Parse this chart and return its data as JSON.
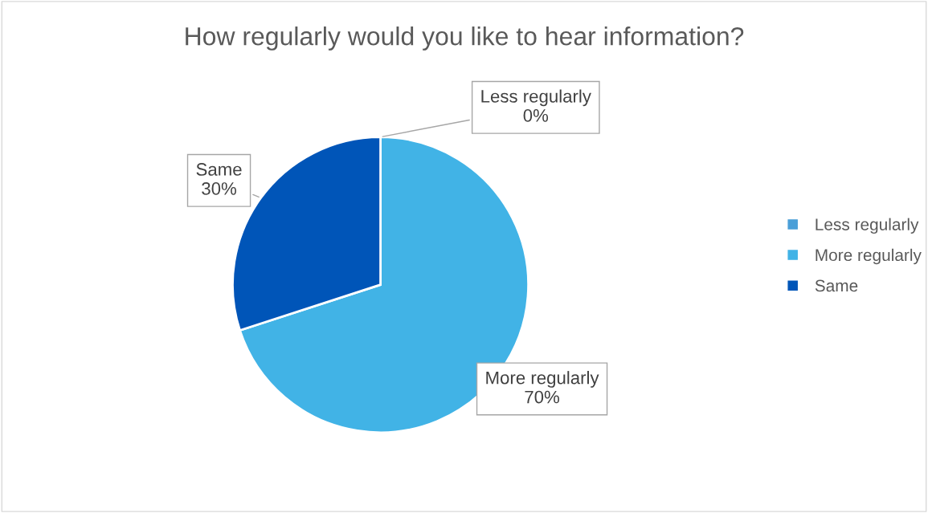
{
  "chart_data": {
    "type": "pie",
    "title": "How regularly would you like to hear information?",
    "categories": [
      "Less regularly",
      "More regularly",
      "Same"
    ],
    "values": [
      0,
      70,
      30
    ],
    "colors": [
      "#4a9fd8",
      "#41b3e6",
      "#0055b8"
    ],
    "value_labels": [
      "0%",
      "70%",
      "30%"
    ],
    "legend": "right"
  }
}
